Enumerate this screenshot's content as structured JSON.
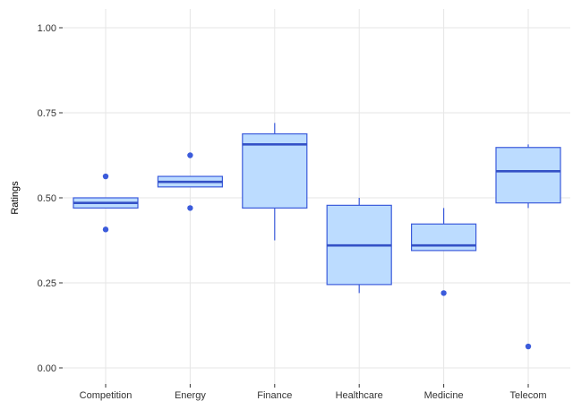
{
  "chart_data": {
    "type": "box",
    "title": "",
    "xlabel": "",
    "ylabel": "Ratings",
    "ylim": [
      0,
      1.0
    ],
    "yticks": [
      0.0,
      0.25,
      0.5,
      0.75,
      1.0
    ],
    "ytick_labels": [
      "0.00",
      "0.25",
      "0.50",
      "0.75",
      "1.00"
    ],
    "grid": true,
    "categories": [
      "Competition",
      "Energy",
      "Finance",
      "Healthcare",
      "Medicine",
      "Telecom"
    ],
    "boxes": [
      {
        "category": "Competition",
        "whisker_low": 0.47,
        "q1": 0.47,
        "median": 0.485,
        "q3": 0.5,
        "whisker_high": 0.5,
        "outliers": [
          0.407,
          0.563
        ]
      },
      {
        "category": "Energy",
        "whisker_low": 0.532,
        "q1": 0.532,
        "median": 0.547,
        "q3": 0.563,
        "whisker_high": 0.563,
        "outliers": [
          0.47,
          0.625
        ]
      },
      {
        "category": "Finance",
        "whisker_low": 0.375,
        "q1": 0.47,
        "median": 0.657,
        "q3": 0.688,
        "whisker_high": 0.72,
        "outliers": []
      },
      {
        "category": "Healthcare",
        "whisker_low": 0.22,
        "q1": 0.245,
        "median": 0.36,
        "q3": 0.478,
        "whisker_high": 0.5,
        "outliers": []
      },
      {
        "category": "Medicine",
        "whisker_low": 0.345,
        "q1": 0.345,
        "median": 0.36,
        "q3": 0.423,
        "whisker_high": 0.47,
        "outliers": [
          0.22
        ]
      },
      {
        "category": "Telecom",
        "whisker_low": 0.47,
        "q1": 0.485,
        "median": 0.578,
        "q3": 0.648,
        "whisker_high": 0.657,
        "outliers": [
          0.063
        ]
      }
    ],
    "colors": {
      "box_fill": "#bcdcff",
      "box_stroke": "#3b5bdb",
      "median": "#3451c6",
      "outlier": "#3b5bdb",
      "grid": "#e6e6e6",
      "tick": "#333333"
    }
  }
}
